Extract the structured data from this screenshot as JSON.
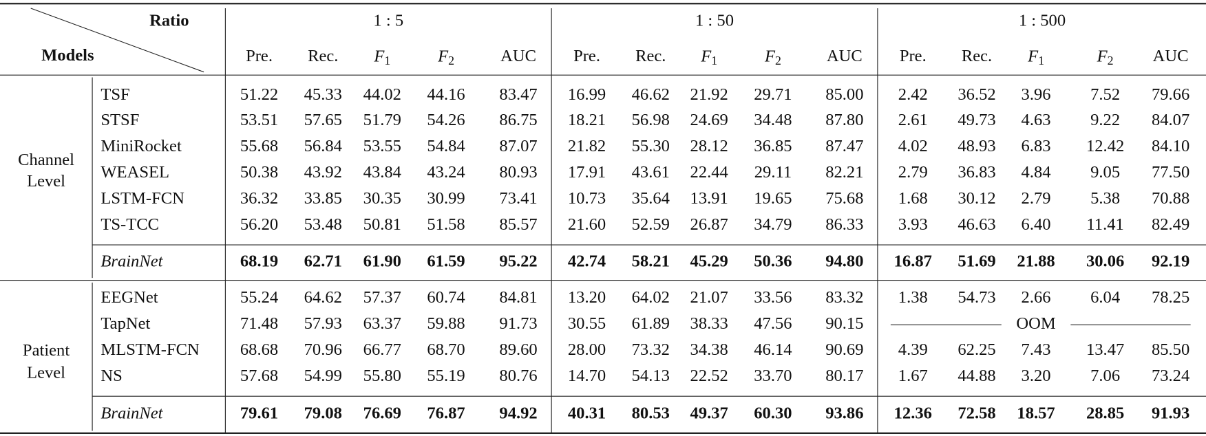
{
  "header": {
    "ratio_label": "Ratio",
    "models_label": "Models",
    "ratios": [
      "1 : 5",
      "1 : 50",
      "1 : 500"
    ],
    "metrics": [
      "Pre.",
      "Rec.",
      {
        "letter": "F",
        "sub": "1"
      },
      {
        "letter": "F",
        "sub": "2"
      },
      "AUC"
    ]
  },
  "groups": [
    {
      "label": [
        "Channel",
        "Level"
      ],
      "rows": [
        {
          "model": "TSF",
          "values": [
            "51.22",
            "45.33",
            "44.02",
            "44.16",
            "83.47",
            "16.99",
            "46.62",
            "21.92",
            "29.71",
            "85.00",
            "2.42",
            "36.52",
            "3.96",
            "7.52",
            "79.66"
          ]
        },
        {
          "model": "STSF",
          "values": [
            "53.51",
            "57.65",
            "51.79",
            "54.26",
            "86.75",
            "18.21",
            "56.98",
            "24.69",
            "34.48",
            "87.80",
            "2.61",
            "49.73",
            "4.63",
            "9.22",
            "84.07"
          ]
        },
        {
          "model": "MiniRocket",
          "values": [
            "55.68",
            "56.84",
            "53.55",
            "54.84",
            "87.07",
            "21.82",
            "55.30",
            "28.12",
            "36.85",
            "87.47",
            "4.02",
            "48.93",
            "6.83",
            "12.42",
            "84.10"
          ]
        },
        {
          "model": "WEASEL",
          "values": [
            "50.38",
            "43.92",
            "43.84",
            "43.24",
            "80.93",
            "17.91",
            "43.61",
            "22.44",
            "29.11",
            "82.21",
            "2.79",
            "36.83",
            "4.84",
            "9.05",
            "77.50"
          ]
        },
        {
          "model": "LSTM-FCN",
          "values": [
            "36.32",
            "33.85",
            "30.35",
            "30.99",
            "73.41",
            "10.73",
            "35.64",
            "13.91",
            "19.65",
            "75.68",
            "1.68",
            "30.12",
            "2.79",
            "5.38",
            "70.88"
          ]
        },
        {
          "model": "TS-TCC",
          "values": [
            "56.20",
            "53.48",
            "50.81",
            "51.58",
            "85.57",
            "21.60",
            "52.59",
            "26.87",
            "34.79",
            "86.33",
            "3.93",
            "46.63",
            "6.40",
            "11.41",
            "82.49"
          ]
        }
      ],
      "best": {
        "model": "BrainNet",
        "values": [
          "68.19",
          "62.71",
          "61.90",
          "61.59",
          "95.22",
          "42.74",
          "58.21",
          "45.29",
          "50.36",
          "94.80",
          "16.87",
          "51.69",
          "21.88",
          "30.06",
          "92.19"
        ]
      }
    },
    {
      "label": [
        "Patient",
        "Level"
      ],
      "rows": [
        {
          "model": "EEGNet",
          "values": [
            "55.24",
            "64.62",
            "57.37",
            "60.74",
            "84.81",
            "13.20",
            "64.02",
            "21.07",
            "33.56",
            "83.32",
            "1.38",
            "54.73",
            "2.66",
            "6.04",
            "78.25"
          ]
        },
        {
          "model": "TapNet",
          "values": [
            "71.48",
            "57.93",
            "63.37",
            "59.88",
            "91.73",
            "30.55",
            "61.89",
            "38.33",
            "47.56",
            "90.15"
          ],
          "span": "OOM"
        },
        {
          "model": "MLSTM-FCN",
          "values": [
            "68.68",
            "70.96",
            "66.77",
            "68.70",
            "89.60",
            "28.00",
            "73.32",
            "34.38",
            "46.14",
            "90.69",
            "4.39",
            "62.25",
            "7.43",
            "13.47",
            "85.50"
          ]
        },
        {
          "model": "NS",
          "values": [
            "57.68",
            "54.99",
            "55.80",
            "55.19",
            "80.76",
            "14.70",
            "54.13",
            "22.52",
            "33.70",
            "80.17",
            "1.67",
            "44.88",
            "3.20",
            "7.06",
            "73.24"
          ]
        }
      ],
      "best": {
        "model": "BrainNet",
        "values": [
          "79.61",
          "79.08",
          "76.69",
          "76.87",
          "94.92",
          "40.31",
          "80.53",
          "49.37",
          "60.30",
          "93.86",
          "12.36",
          "72.58",
          "18.57",
          "28.85",
          "91.93"
        ]
      }
    }
  ]
}
